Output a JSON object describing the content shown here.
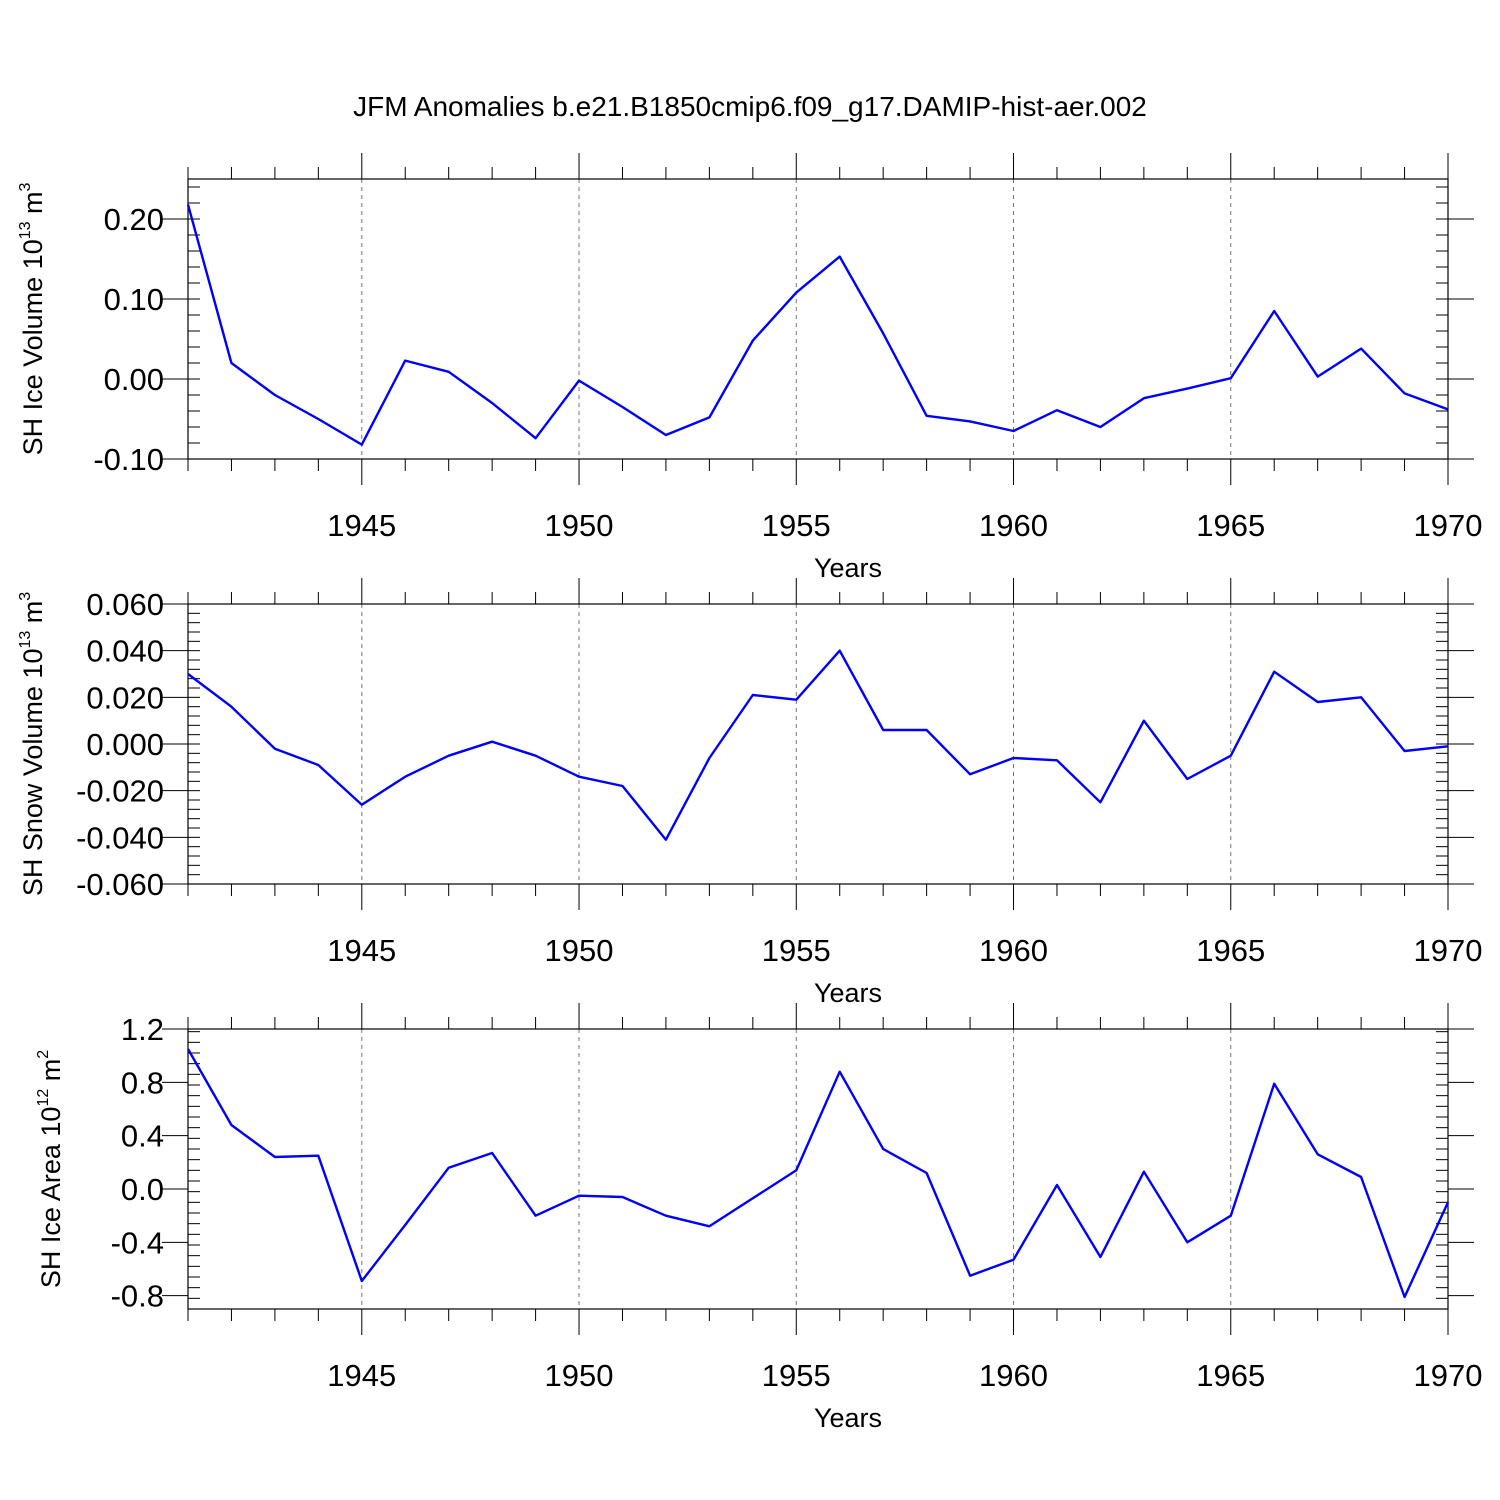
{
  "title": "JFM Anomalies b.e21.B1850cmip6.f09_g17.DAMIP-hist-aer.002",
  "chart_data": [
    {
      "type": "line",
      "xlabel": "Years",
      "ylabel": {
        "text": "SH Ice Volume 10",
        "sup": "13",
        "unit": " m",
        "unit_sup": "3"
      },
      "xlim": [
        1941,
        1970
      ],
      "ylim": [
        -0.1,
        0.25
      ],
      "yticks": [
        -0.1,
        0.0,
        0.1,
        0.2
      ],
      "ytick_labels": [
        "-0.10",
        "0.00",
        "0.10",
        "0.20"
      ],
      "xticks": [
        1945,
        1950,
        1955,
        1960,
        1965,
        1970
      ],
      "xtick_labels": [
        "1945",
        "1950",
        "1955",
        "1960",
        "1965",
        "1970"
      ],
      "grid": "vertical-dashed",
      "color": "#0000ff",
      "x": [
        1941,
        1942,
        1943,
        1944,
        1945,
        1946,
        1947,
        1948,
        1949,
        1950,
        1951,
        1952,
        1953,
        1954,
        1955,
        1956,
        1957,
        1958,
        1959,
        1960,
        1961,
        1962,
        1963,
        1964,
        1965,
        1966,
        1967,
        1968,
        1969,
        1970
      ],
      "values": [
        0.218,
        0.02,
        -0.02,
        -0.05,
        -0.082,
        0.023,
        0.009,
        -0.03,
        -0.074,
        -0.002,
        -0.035,
        -0.07,
        -0.048,
        0.048,
        0.108,
        0.153,
        0.057,
        -0.046,
        -0.053,
        -0.065,
        -0.039,
        -0.06,
        -0.024,
        -0.012,
        0.001,
        0.085,
        0.003,
        0.038,
        -0.018,
        -0.038
      ]
    },
    {
      "type": "line",
      "xlabel": "Years",
      "ylabel": {
        "text": "SH Snow Volume 10",
        "sup": "13",
        "unit": " m",
        "unit_sup": "3"
      },
      "xlim": [
        1941,
        1970
      ],
      "ylim": [
        -0.06,
        0.06
      ],
      "yticks": [
        -0.06,
        -0.04,
        -0.02,
        0.0,
        0.02,
        0.04,
        0.06
      ],
      "ytick_labels": [
        "-0.060",
        "-0.040",
        "-0.020",
        "0.000",
        "0.020",
        "0.040",
        "0.060"
      ],
      "xticks": [
        1945,
        1950,
        1955,
        1960,
        1965,
        1970
      ],
      "xtick_labels": [
        "1945",
        "1950",
        "1955",
        "1960",
        "1965",
        "1970"
      ],
      "grid": "vertical-dashed",
      "color": "#0000ff",
      "x": [
        1941,
        1942,
        1943,
        1944,
        1945,
        1946,
        1947,
        1948,
        1949,
        1950,
        1951,
        1952,
        1953,
        1954,
        1955,
        1956,
        1957,
        1958,
        1959,
        1960,
        1961,
        1962,
        1963,
        1964,
        1965,
        1966,
        1967,
        1968,
        1969,
        1970
      ],
      "values": [
        0.03,
        0.016,
        -0.002,
        -0.009,
        -0.026,
        -0.014,
        -0.005,
        0.001,
        -0.005,
        -0.014,
        -0.018,
        -0.041,
        -0.006,
        0.021,
        0.019,
        0.04,
        0.006,
        0.006,
        -0.013,
        -0.006,
        -0.007,
        -0.025,
        0.01,
        -0.015,
        -0.005,
        0.031,
        0.018,
        0.02,
        -0.003,
        -0.001
      ]
    },
    {
      "type": "line",
      "xlabel": "Years",
      "ylabel": {
        "text": "SH Ice Area 10",
        "sup": "12",
        "unit": " m",
        "unit_sup": "2"
      },
      "xlim": [
        1941,
        1970
      ],
      "ylim": [
        -0.9,
        1.2
      ],
      "yticks": [
        -0.8,
        -0.4,
        0.0,
        0.4,
        0.8,
        1.2
      ],
      "ytick_labels": [
        "-0.8",
        "-0.4",
        "0.0",
        "0.4",
        "0.8",
        "1.2"
      ],
      "xticks": [
        1945,
        1950,
        1955,
        1960,
        1965,
        1970
      ],
      "xtick_labels": [
        "1945",
        "1950",
        "1955",
        "1960",
        "1965",
        "1970"
      ],
      "grid": "vertical-dashed",
      "color": "#0000ff",
      "x": [
        1941,
        1942,
        1943,
        1944,
        1945,
        1946,
        1947,
        1948,
        1949,
        1950,
        1951,
        1952,
        1953,
        1954,
        1955,
        1956,
        1957,
        1958,
        1959,
        1960,
        1961,
        1962,
        1963,
        1964,
        1965,
        1966,
        1967,
        1968,
        1969,
        1970
      ],
      "values": [
        1.05,
        0.48,
        0.24,
        0.25,
        -0.69,
        -0.27,
        0.16,
        0.27,
        -0.2,
        -0.05,
        -0.06,
        -0.2,
        -0.28,
        -0.07,
        0.14,
        0.88,
        0.3,
        0.12,
        -0.65,
        -0.53,
        0.03,
        -0.51,
        0.13,
        -0.4,
        -0.2,
        0.79,
        0.26,
        0.09,
        -0.81,
        -0.1
      ]
    }
  ]
}
